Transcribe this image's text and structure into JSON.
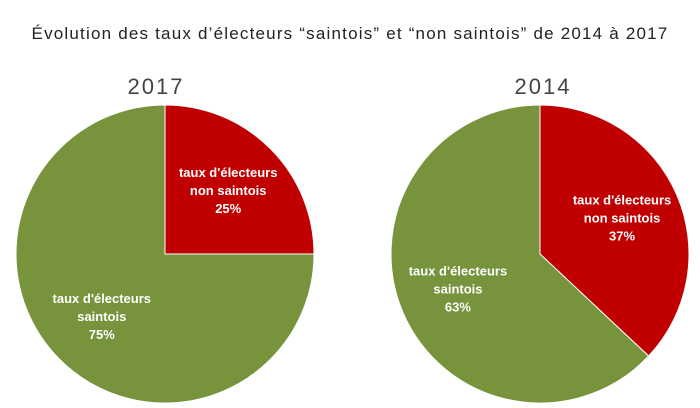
{
  "title": "Évolution des taux d’électeurs “saintois” et “non saintois” de 2014 à 2017",
  "colors": {
    "saintois": "#77933c",
    "non_saintois": "#c00000"
  },
  "chart_data": [
    {
      "type": "pie",
      "title": "2017",
      "slices": [
        {
          "label_lines": [
            "taux d'électeurs",
            "non saintois"
          ],
          "value": 25,
          "value_text": "25%",
          "color": "#c00000"
        },
        {
          "label_lines": [
            "taux d'électeurs",
            "saintois"
          ],
          "value": 75,
          "value_text": "75%",
          "color": "#77933c"
        }
      ]
    },
    {
      "type": "pie",
      "title": "2014",
      "slices": [
        {
          "label_lines": [
            "taux d'électeurs",
            "non saintois"
          ],
          "value": 37,
          "value_text": "37%",
          "color": "#c00000"
        },
        {
          "label_lines": [
            "taux d'électeurs",
            "saintois"
          ],
          "value": 63,
          "value_text": "63%",
          "color": "#77933c"
        }
      ]
    }
  ]
}
